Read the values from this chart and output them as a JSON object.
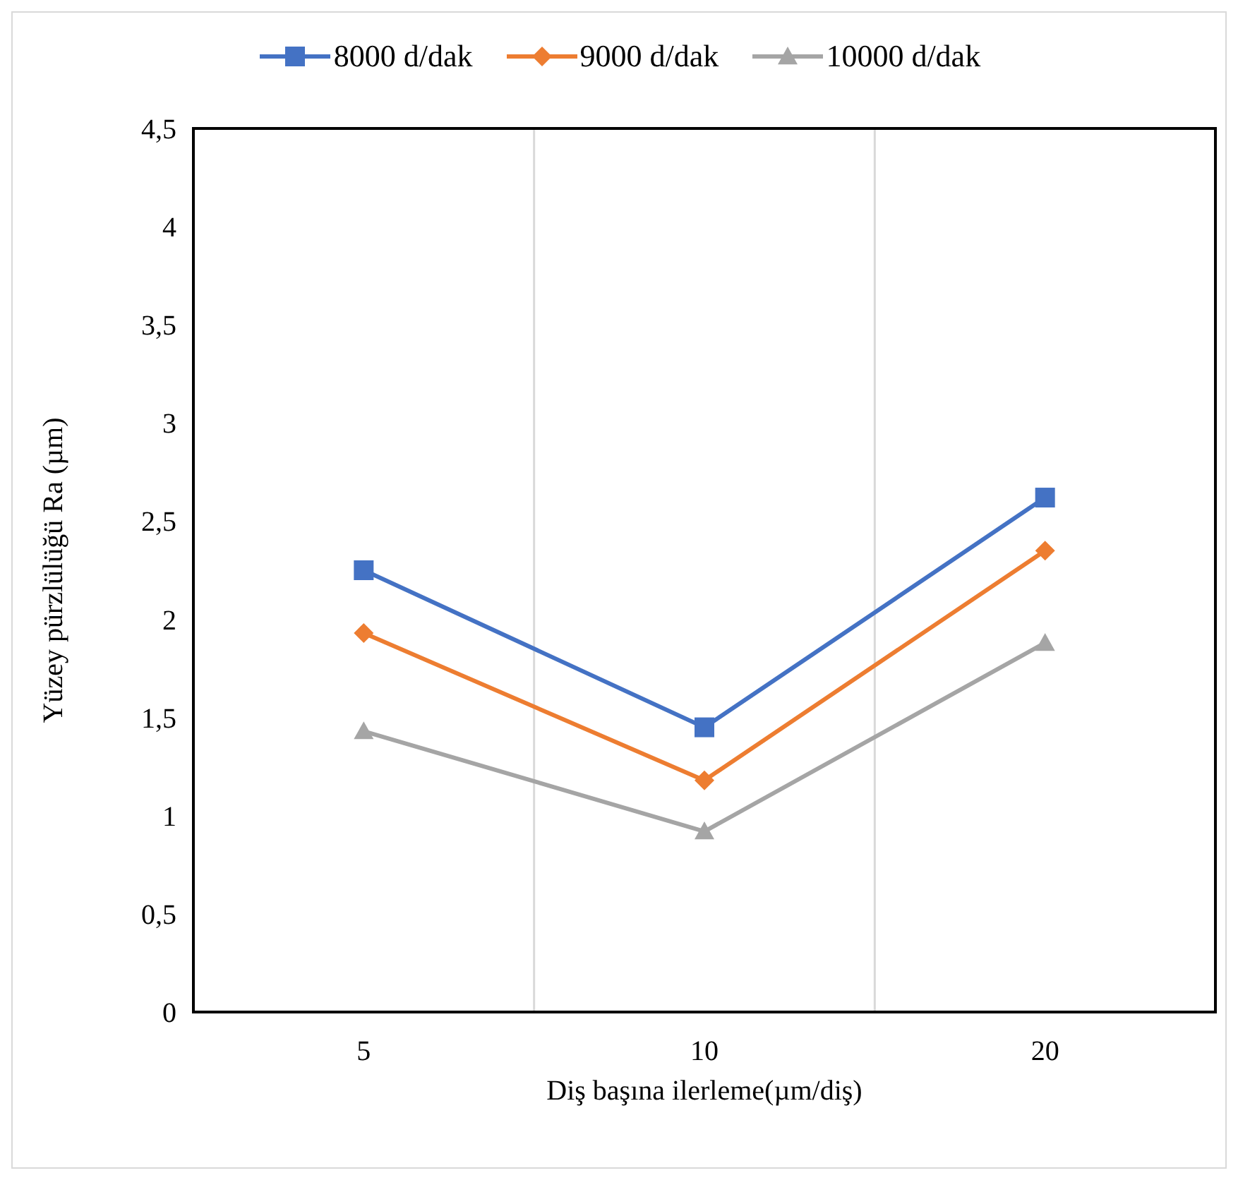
{
  "chart_data": {
    "type": "line",
    "xlabel": "Diş başına ilerleme(µm/diş)",
    "ylabel": "Yüzey pürzlülüğü Ra (µm)",
    "categories": [
      "5",
      "10",
      "20"
    ],
    "series": [
      {
        "name": "8000 d/dak",
        "color": "#4472c4",
        "marker": "square",
        "values": [
          2.25,
          1.45,
          2.62
        ]
      },
      {
        "name": "9000 d/dak",
        "color": "#ed7d31",
        "marker": "diamond",
        "values": [
          1.93,
          1.18,
          2.35
        ]
      },
      {
        "name": "10000 d/dak",
        "color": "#a5a5a5",
        "marker": "triangle",
        "values": [
          1.43,
          0.92,
          1.88
        ]
      }
    ],
    "ylim": [
      0,
      4.5
    ],
    "yticks": [
      0,
      {
        "value": 0.5,
        "label": "0,5"
      },
      1,
      {
        "value": 1.5,
        "label": "1,5"
      },
      2,
      {
        "value": 2.5,
        "label": "2,5"
      },
      3,
      {
        "value": 3.5,
        "label": "3,5"
      },
      4,
      {
        "value": 4.5,
        "label": "4,5"
      }
    ],
    "legend": "top",
    "line_style": "solid"
  }
}
